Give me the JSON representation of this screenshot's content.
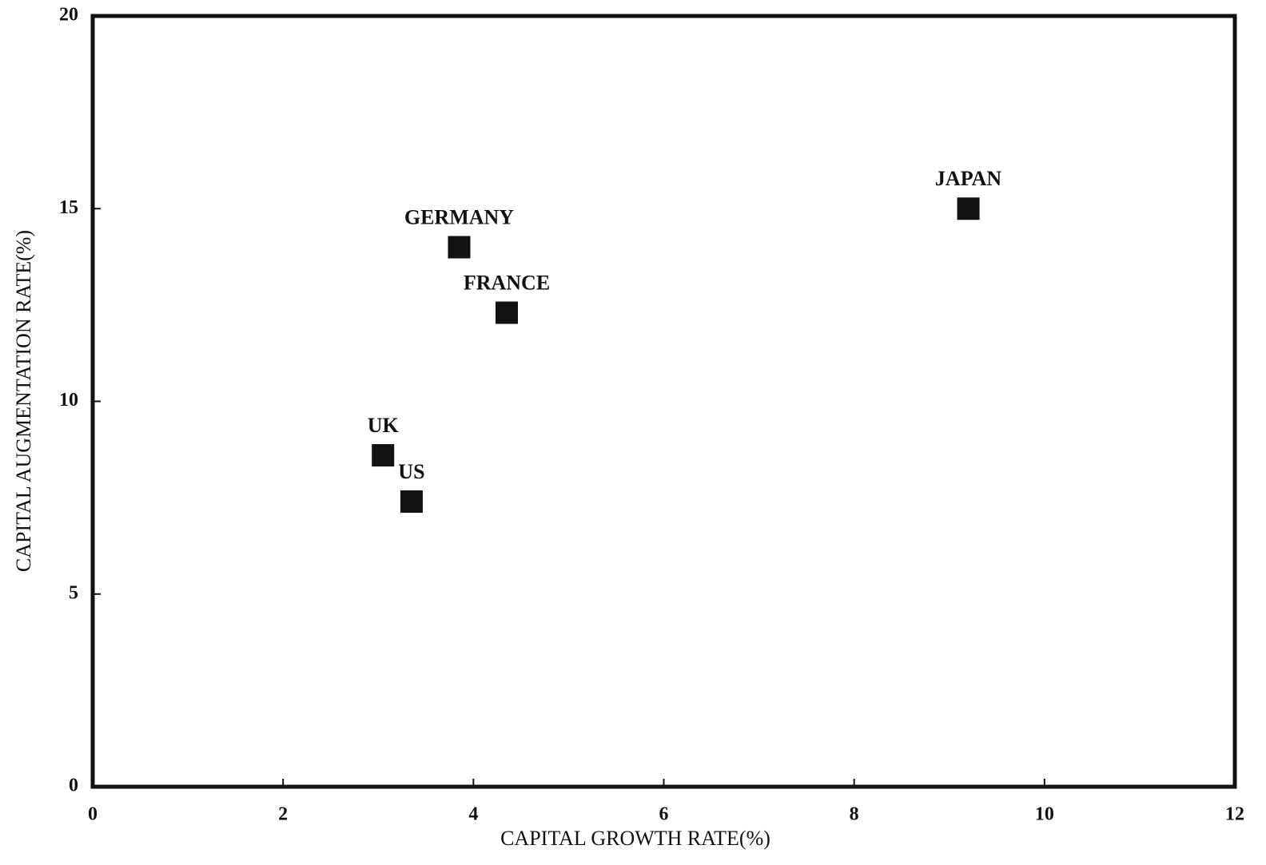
{
  "chart_data": {
    "type": "scatter",
    "x_label": "CAPITAL GROWTH RATE(%)",
    "y_label": "CAPITAL AUGMENTATION RATE(%)",
    "labels": [
      "JAPAN",
      "GERMANY",
      "FRANCE",
      "UK",
      "US"
    ],
    "x": [
      9.2,
      3.85,
      4.35,
      3.05,
      3.35
    ],
    "values": [
      15.0,
      14.0,
      12.3,
      8.6,
      7.4
    ],
    "color": "#111111",
    "xlim": [
      0,
      12
    ],
    "xticks": [
      0,
      2,
      4,
      6,
      8,
      10,
      12
    ],
    "ylim": [
      0,
      20
    ],
    "yticks": [
      0,
      5,
      10,
      15,
      20
    ],
    "grid": false
  }
}
